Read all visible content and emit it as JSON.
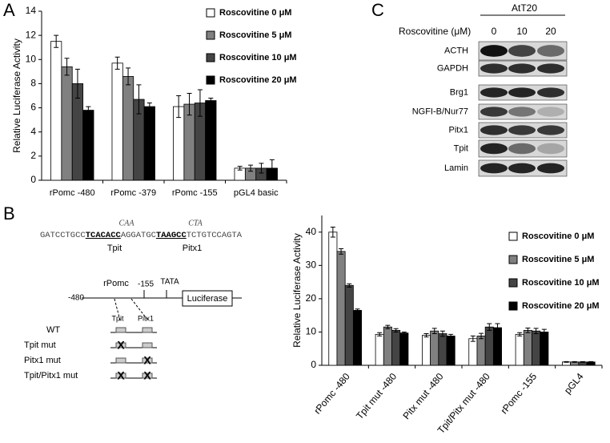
{
  "panel_labels": [
    "A",
    "B",
    "C"
  ],
  "chart_data": [
    {
      "type": "bar",
      "y_label": "Relative Luciferase Activity",
      "categories": [
        "rPomc -480",
        "rPomc -379",
        "rPomc -155",
        "pGL4 basic"
      ],
      "ylim": [
        0,
        14
      ],
      "yticks": [
        0,
        2,
        4,
        6,
        8,
        10,
        12,
        14
      ],
      "rotate_labels": false,
      "series": [
        {
          "name": "Roscovitine 0 μM",
          "color": "#ffffff",
          "values": [
            11.5,
            9.7,
            6.1,
            1.0
          ],
          "errors": [
            0.5,
            0.5,
            0.9,
            0.15
          ]
        },
        {
          "name": "Roscovitine 5 μM",
          "color": "#808080",
          "values": [
            9.4,
            8.6,
            6.3,
            1.0
          ],
          "errors": [
            0.7,
            0.7,
            0.9,
            0.25
          ]
        },
        {
          "name": "Roscovitine 10 μM",
          "color": "#444444",
          "values": [
            8.0,
            6.7,
            6.4,
            1.0
          ],
          "errors": [
            1.2,
            1.2,
            1.1,
            0.4
          ]
        },
        {
          "name": "Roscovitine 20 μM",
          "color": "#000000",
          "values": [
            5.8,
            6.1,
            6.6,
            1.0
          ],
          "errors": [
            0.3,
            0.3,
            0.2,
            0.7
          ]
        }
      ]
    },
    {
      "type": "bar",
      "y_label": "Relative Luciferase Activity",
      "categories": [
        "rPomc -480",
        "Tpit mut -480",
        "Pitx mut -480",
        "Tpit/Pitx mut -480",
        "rPomc -155",
        "pGL4"
      ],
      "ylim": [
        0,
        45
      ],
      "yticks": [
        0,
        10,
        20,
        30,
        40
      ],
      "rotate_labels": true,
      "series": [
        {
          "name": "Roscovitine 0 μM",
          "color": "#ffffff",
          "values": [
            40,
            9.3,
            9,
            8,
            9.3,
            1
          ],
          "errors": [
            1.5,
            0.5,
            0.5,
            0.8,
            0.5,
            0.1
          ]
        },
        {
          "name": "Roscovitine 5 μM",
          "color": "#808080",
          "values": [
            34.2,
            11.5,
            10.3,
            8.8,
            10.5,
            1
          ],
          "errors": [
            0.8,
            0.5,
            0.8,
            0.8,
            0.7,
            0.1
          ]
        },
        {
          "name": "Roscovitine 10 μM",
          "color": "#444444",
          "values": [
            24,
            10.5,
            9.5,
            11.5,
            10.3,
            1
          ],
          "errors": [
            0.5,
            0.5,
            0.8,
            1,
            0.8,
            0.1
          ]
        },
        {
          "name": "Roscovitine 20 μM",
          "color": "#000000",
          "values": [
            16.5,
            9.7,
            8.8,
            11.3,
            10,
            1
          ],
          "errors": [
            0.4,
            0.3,
            0.5,
            1.2,
            0.8,
            0.1
          ]
        }
      ]
    }
  ],
  "blot": {
    "cell_line": "AtT20",
    "treatment_label": "Roscovitine (μM)",
    "lanes": [
      "0",
      "10",
      "20"
    ],
    "rows": [
      "ACTH",
      "GAPDH",
      "Brg1",
      "NGFI-B/Nur77",
      "Pitx1",
      "Tpit",
      "Lamin"
    ]
  },
  "sequence": {
    "parts": [
      "GATCCTGCC",
      "TCACACC",
      "AGGATGC",
      "TAAGCC",
      "TCTGTCCAGTA"
    ],
    "mutations": [
      "CAA",
      "CTA"
    ],
    "site_labels": [
      "Tpit",
      "Pitx1"
    ]
  },
  "construct": {
    "promoter": "rPomc",
    "start": "-480",
    "mid": "-155",
    "tata": "TATA",
    "reporter": "Luciferase",
    "sites": [
      "Tpit",
      "Pitx1"
    ],
    "variants": [
      "WT",
      "Tpit  mut",
      "Pitx1 mut",
      "Tpit/Pitx1 mut"
    ]
  }
}
